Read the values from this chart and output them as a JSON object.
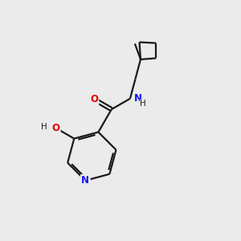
{
  "background_color": "#ebebeb",
  "bond_color": "#1a1a1a",
  "N_color": "#1414ff",
  "O_color": "#e00000",
  "figsize": [
    3.0,
    3.0
  ],
  "dpi": 100,
  "xlim": [
    0,
    10
  ],
  "ylim": [
    0,
    10
  ],
  "lw": 1.6
}
